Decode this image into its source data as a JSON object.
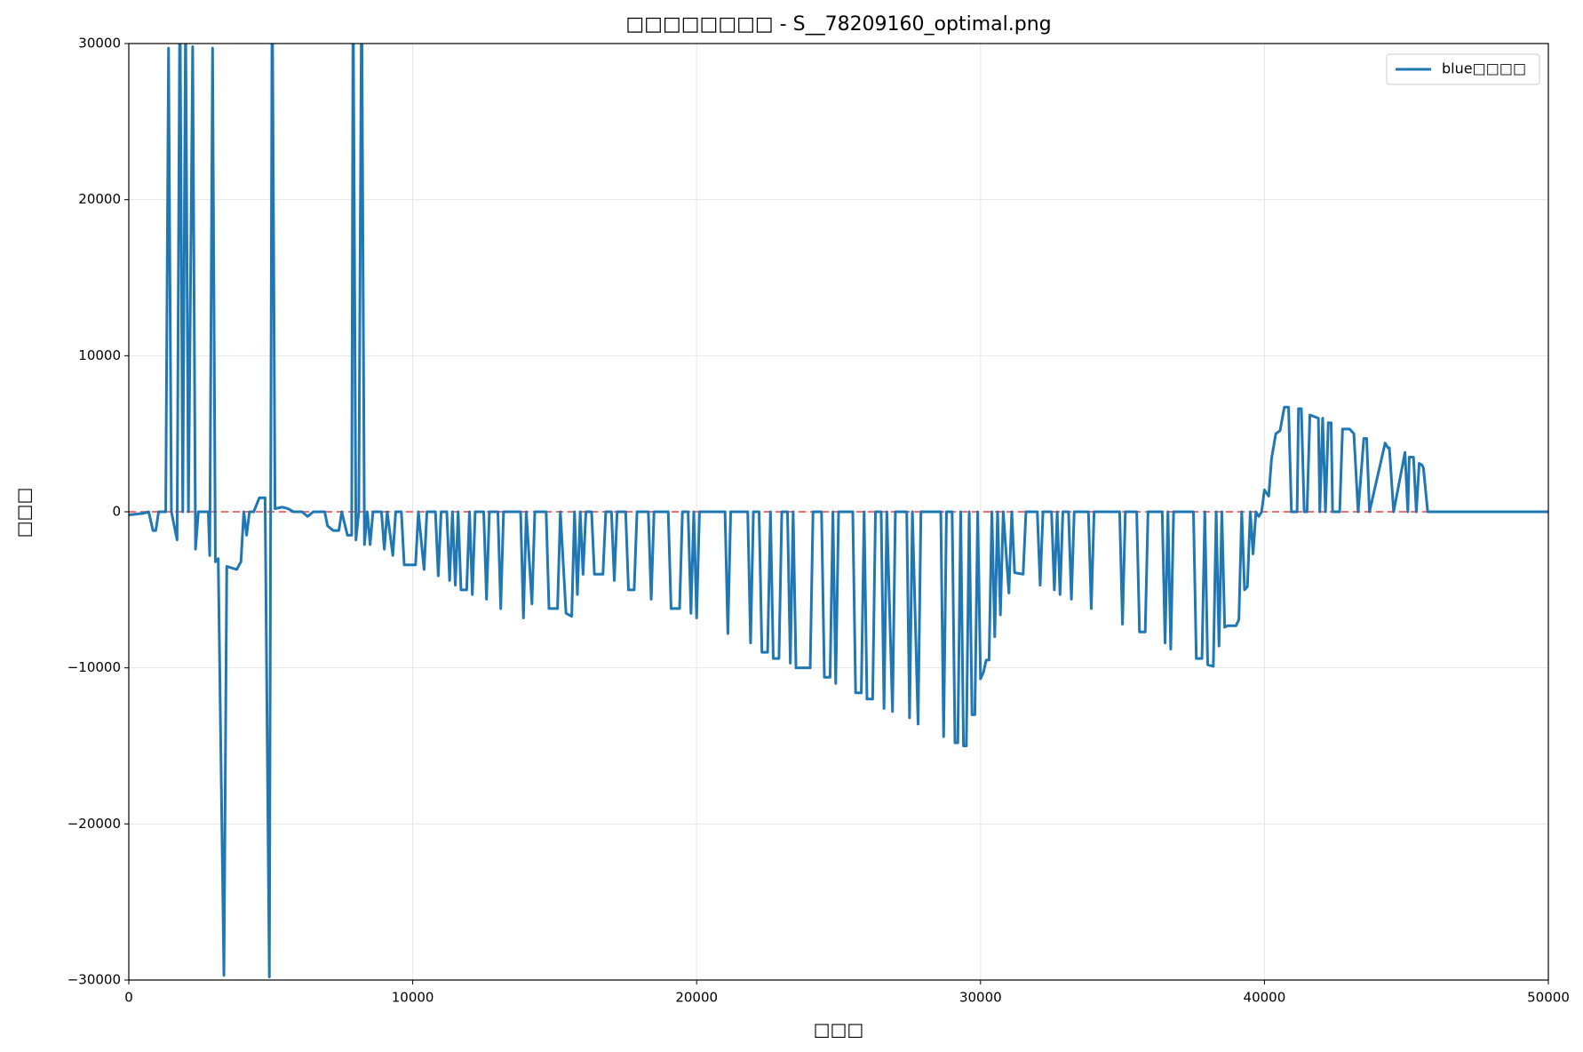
{
  "chart_data": {
    "type": "line",
    "title": "□□□□□□□□ - S__78209160_optimal.png",
    "x_label": "□□□",
    "y_label": "□□□",
    "xlim": [
      0,
      50000
    ],
    "ylim": [
      -30000,
      30000
    ],
    "xticks": [
      0,
      10000,
      20000,
      30000,
      40000,
      50000
    ],
    "yticks": [
      {
        "value": -30000,
        "label": "−30000"
      },
      {
        "value": -20000,
        "label": "−20000"
      },
      {
        "value": -10000,
        "label": "−10000"
      },
      0,
      10000,
      20000,
      30000
    ],
    "grid": true,
    "legend": "upper right",
    "axhline": {
      "y": 0,
      "color": "#f07070",
      "linestyle": "dashed"
    },
    "x": [
      0,
      500,
      700,
      850,
      950,
      1050,
      1300,
      1400,
      1500,
      1700,
      1800,
      1900,
      2000,
      2100,
      2250,
      2350,
      2450,
      2800,
      2850,
      2950,
      3050,
      3150,
      3350,
      3450,
      3800,
      3950,
      4050,
      4150,
      4250,
      4400,
      4600,
      4800,
      4950,
      5050,
      5150,
      5400,
      5600,
      5800,
      6100,
      6300,
      6500,
      6900,
      7000,
      7200,
      7400,
      7500,
      7700,
      7850,
      7900,
      8000,
      8100,
      8200,
      8300,
      8400,
      8500,
      8600,
      8900,
      9000,
      9100,
      9300,
      9400,
      9600,
      9700,
      10100,
      10200,
      10400,
      10500,
      10800,
      10900,
      11000,
      11200,
      11300,
      11400,
      11500,
      11600,
      11700,
      11900,
      12000,
      12100,
      12200,
      12500,
      12600,
      12700,
      13000,
      13100,
      13200,
      13800,
      13900,
      14000,
      14200,
      14300,
      14700,
      14800,
      15100,
      15200,
      15400,
      15600,
      15700,
      15800,
      15900,
      16000,
      16100,
      16300,
      16400,
      16700,
      16800,
      17000,
      17100,
      17200,
      17500,
      17600,
      17800,
      17900,
      18300,
      18400,
      18500,
      19000,
      19100,
      19400,
      19500,
      19700,
      19800,
      19900,
      20000,
      20100,
      21000,
      21100,
      21200,
      21800,
      21900,
      22000,
      22200,
      22300,
      22500,
      22600,
      22700,
      22900,
      23000,
      23200,
      23300,
      23400,
      23500,
      24000,
      24100,
      24400,
      24500,
      24700,
      24800,
      24900,
      25000,
      25500,
      25600,
      25800,
      25900,
      26000,
      26200,
      26300,
      26500,
      26600,
      26700,
      26900,
      27000,
      27400,
      27500,
      27600,
      27800,
      27900,
      28600,
      28700,
      28800,
      29000,
      29100,
      29200,
      29300,
      29400,
      29500,
      29600,
      29700,
      29800,
      29900,
      30000,
      30100,
      30200,
      30300,
      30400,
      30500,
      30600,
      30700,
      30800,
      31000,
      31100,
      31200,
      31500,
      31600,
      32000,
      32100,
      32200,
      32500,
      32600,
      32700,
      32800,
      32900,
      33100,
      33200,
      33300,
      33800,
      33900,
      34000,
      34900,
      35000,
      35100,
      35500,
      35600,
      35800,
      35900,
      36400,
      36500,
      36600,
      36700,
      36800,
      37500,
      37600,
      37800,
      37900,
      38000,
      38200,
      38300,
      38400,
      38500,
      38600,
      38700,
      39000,
      39100,
      39200,
      39300,
      39400,
      39500,
      39600,
      39700,
      39800,
      39900,
      40000,
      40150,
      40250,
      40400,
      40550,
      40700,
      40850,
      40950,
      41150,
      41200,
      41300,
      41400,
      41500,
      41600,
      41900,
      41950,
      42050,
      42150,
      42250,
      42350,
      42400,
      42650,
      42750,
      43000,
      43150,
      43300,
      43500,
      43600,
      43700,
      44250,
      44350,
      44400,
      44550,
      44950,
      45050,
      45100,
      45250,
      45350,
      45450,
      45550,
      45600,
      45750,
      50000
    ],
    "series": [
      {
        "name": "blue□□□□",
        "color": "#1f77b4",
        "values": [
          -200,
          -100,
          0,
          -1200,
          -1200,
          0,
          0,
          29700,
          0,
          -1800,
          34000,
          0,
          32000,
          0,
          29800,
          -2400,
          0,
          0,
          -2800,
          29700,
          -3200,
          -3000,
          -29700,
          -3500,
          -3700,
          -3200,
          0,
          -1500,
          0,
          0,
          900,
          900,
          -29800,
          35000,
          200,
          300,
          200,
          0,
          0,
          -300,
          0,
          0,
          -900,
          -1200,
          -1200,
          0,
          -1500,
          -1500,
          34000,
          -1800,
          0,
          34000,
          -2100,
          0,
          -2100,
          0,
          0,
          -2400,
          0,
          -2800,
          0,
          0,
          -3400,
          -3400,
          0,
          -3700,
          0,
          0,
          -4100,
          0,
          0,
          -4400,
          0,
          -4700,
          0,
          -5000,
          -5000,
          0,
          -5300,
          0,
          0,
          -5600,
          0,
          0,
          -6200,
          0,
          0,
          -6800,
          0,
          -5900,
          0,
          0,
          -6200,
          -6200,
          0,
          -6500,
          -6700,
          0,
          -5300,
          0,
          -4000,
          0,
          0,
          -4000,
          -4000,
          0,
          0,
          -4400,
          0,
          0,
          -5000,
          -5000,
          0,
          0,
          -5600,
          0,
          0,
          -6200,
          -6200,
          0,
          0,
          -6500,
          0,
          -6800,
          0,
          0,
          -7800,
          0,
          0,
          -8400,
          0,
          0,
          -9000,
          -9000,
          0,
          -9400,
          -9400,
          0,
          0,
          -9700,
          0,
          -10000,
          -10000,
          0,
          0,
          -10600,
          -10600,
          0,
          -11000,
          0,
          0,
          -11600,
          -11600,
          0,
          -12000,
          -12000,
          0,
          0,
          -12600,
          0,
          -12800,
          0,
          0,
          -13200,
          0,
          -13600,
          0,
          0,
          -14400,
          0,
          0,
          -14800,
          -14800,
          0,
          -15000,
          -15000,
          0,
          -13000,
          -13000,
          0,
          -10700,
          -10300,
          -9500,
          -9500,
          0,
          -8000,
          0,
          -6600,
          0,
          -5200,
          0,
          -3900,
          -4000,
          0,
          0,
          -4700,
          0,
          0,
          -5000,
          0,
          -5300,
          0,
          0,
          -5600,
          0,
          0,
          -6200,
          0,
          0,
          -7200,
          0,
          0,
          -7700,
          -7700,
          0,
          0,
          -8400,
          0,
          -8800,
          0,
          0,
          -9400,
          -9400,
          0,
          -9800,
          -9900,
          0,
          -8600,
          0,
          -7400,
          -7300,
          -7300,
          -6900,
          0,
          -5000,
          -4800,
          0,
          -2700,
          0,
          -300,
          0,
          1400,
          1000,
          3400,
          5000,
          5200,
          6700,
          6700,
          0,
          0,
          6600,
          6600,
          0,
          0,
          6200,
          6000,
          0,
          6000,
          0,
          5700,
          5700,
          0,
          0,
          5300,
          5300,
          5000,
          0,
          4700,
          4700,
          0,
          4400,
          4100,
          4100,
          0,
          3800,
          0,
          3500,
          3500,
          0,
          3100,
          3000,
          2800,
          0,
          0
        ]
      }
    ]
  }
}
